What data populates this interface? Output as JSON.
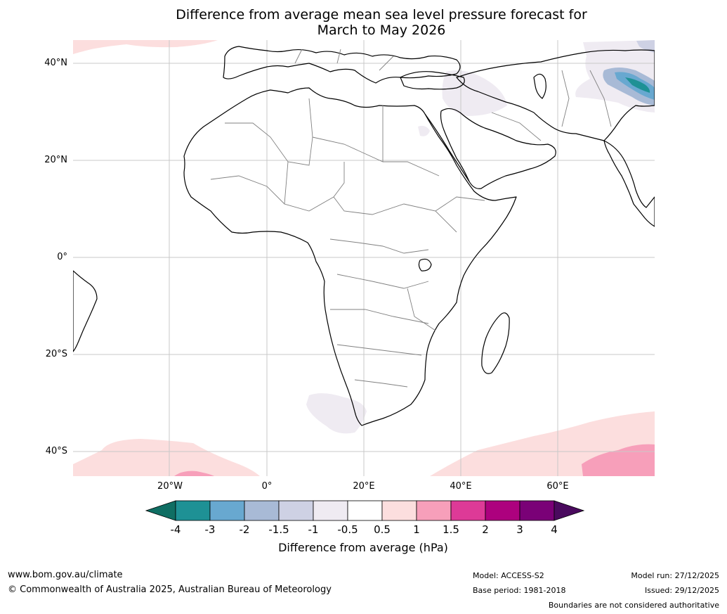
{
  "title": {
    "line1": "Difference from average mean sea level pressure forecast for",
    "line2": "March to May 2026"
  },
  "map": {
    "lat_labels": [
      "40°N",
      "20°N",
      "0°",
      "20°S",
      "40°S"
    ],
    "lon_labels": [
      "20°W",
      "0°",
      "20°E",
      "40°E",
      "60°E"
    ],
    "ocean_color": "#ffffff",
    "land_outline_color": "#000000",
    "border_color": "#808080",
    "grid_color": "#c8c8c8"
  },
  "colorbar": {
    "label": "Difference from average (hPa)",
    "ticks": [
      "-4",
      "-3",
      "-2",
      "-1.5",
      "-1",
      "-0.5",
      "0.5",
      "1",
      "1.5",
      "2",
      "3",
      "4"
    ],
    "low_extend_color": "#0f6e63",
    "high_extend_color": "#4a0a5e",
    "colors": [
      "#1e9195",
      "#68a8d0",
      "#a8bad6",
      "#ced1e4",
      "#efebf2",
      "#ffffff",
      "#fcdede",
      "#f79fba",
      "#dd3a97",
      "#ad017e",
      "#7a0177"
    ]
  },
  "footer": {
    "website": "www.bom.gov.au/climate",
    "copyright": "© Commonwealth of Australia 2025, Australian Bureau of Meteorology",
    "model": "Model: ACCESS-S2",
    "base_period": "Base period: 1981-2018",
    "model_run": "Model run: 27/12/2025",
    "issued": "Issued: 29/12/2025",
    "disclaimer": "Boundaries are not considered authoritative"
  }
}
